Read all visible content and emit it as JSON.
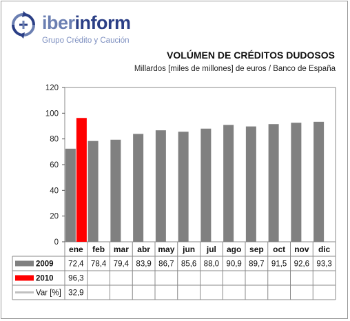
{
  "brand": {
    "name_part1": "iber",
    "name_part2": "inform",
    "tagline": "Grupo Crédito y Caución",
    "logo_icon": "circular-arrows-icon",
    "colors": {
      "light": "#6b7fb2",
      "dark": "#2b3f86"
    }
  },
  "chart_data": {
    "type": "bar",
    "title": "VOLÚMEN DE CRÉDITOS DUDOSOS",
    "subtitle": "Millardos [miles de millones] de euros / Banco de España",
    "categories": [
      "ene",
      "feb",
      "mar",
      "abr",
      "may",
      "jun",
      "jul",
      "ago",
      "sep",
      "oct",
      "nov",
      "dic"
    ],
    "series": [
      {
        "name": "2009",
        "color": "#808080",
        "values": [
          72.4,
          78.4,
          79.4,
          83.9,
          86.7,
          85.6,
          88.0,
          90.9,
          89.7,
          91.5,
          92.6,
          93.3
        ],
        "labels": [
          "72,4",
          "78,4",
          "79,4",
          "83,9",
          "86,7",
          "85,6",
          "88,0",
          "90,9",
          "89,7",
          "91,5",
          "92,6",
          "93,3"
        ]
      },
      {
        "name": "2010",
        "color": "#ff0000",
        "values": [
          96.3,
          null,
          null,
          null,
          null,
          null,
          null,
          null,
          null,
          null,
          null,
          null
        ],
        "labels": [
          "96,3",
          "",
          "",
          "",
          "",
          "",
          "",
          "",
          "",
          "",
          "",
          ""
        ]
      },
      {
        "name": "Var [%]",
        "color": "#c0c0c0",
        "values": [
          32.9,
          null,
          null,
          null,
          null,
          null,
          null,
          null,
          null,
          null,
          null,
          null
        ],
        "labels": [
          "32,9",
          "",
          "",
          "",
          "",
          "",
          "",
          "",
          "",
          "",
          "",
          ""
        ]
      }
    ],
    "ylim": [
      0,
      120
    ],
    "yticks": [
      0,
      20,
      40,
      60,
      80,
      100,
      120
    ],
    "grid": false,
    "legend": "data-table-below"
  }
}
